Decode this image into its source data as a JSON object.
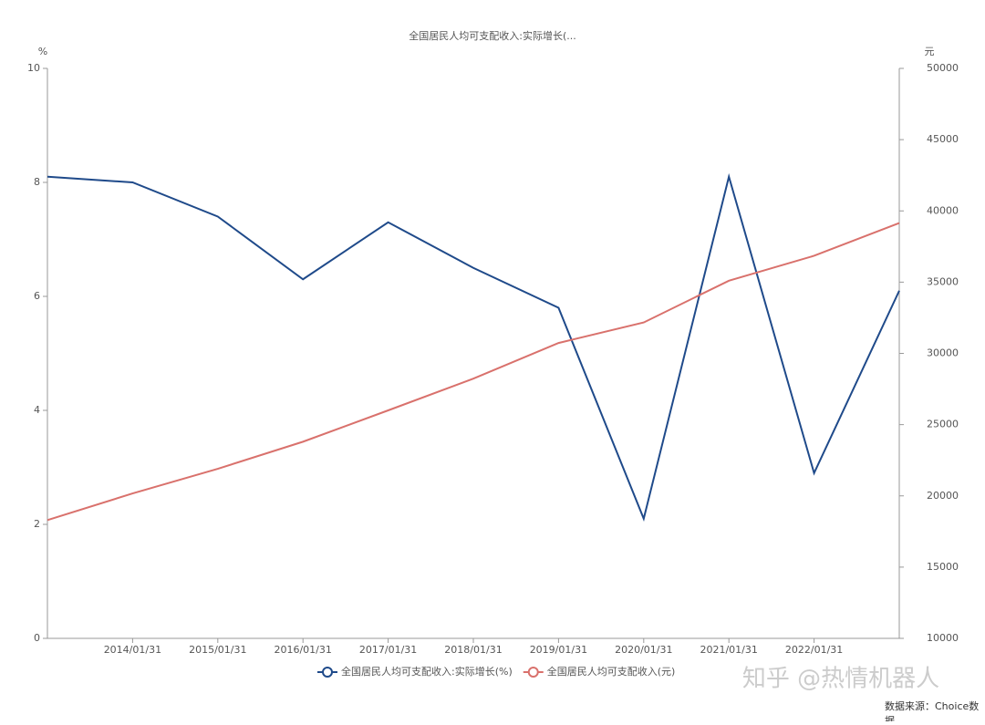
{
  "chart_data": {
    "type": "line",
    "title": "全国居民人均可支配收入:实际增长(...",
    "y_unit": "%",
    "y2_unit": "元",
    "categories": [
      null,
      "2014/01/31",
      "2015/01/31",
      "2016/01/31",
      "2017/01/31",
      "2018/01/31",
      "2019/01/31",
      "2020/01/31",
      "2021/01/31",
      "2022/01/31",
      null
    ],
    "series": [
      {
        "name": "全国居民人均可支配收入:实际增长(%)",
        "color": "#1f4a8a",
        "values": [
          8.1,
          8.0,
          7.4,
          6.3,
          7.3,
          6.5,
          5.8,
          2.1,
          8.1,
          2.9,
          6.1
        ]
      },
      {
        "name": "全国居民人均可支配收入(元)",
        "color": "#d9716c",
        "axis": "y2",
        "values": [
          18300,
          20170,
          21900,
          23800,
          26000,
          28230,
          30730,
          32170,
          35100,
          36850,
          39150
        ]
      }
    ],
    "ylim": [
      0,
      10
    ],
    "yticks": [
      0,
      2,
      4,
      6,
      8,
      10
    ],
    "y2lim": [
      10000,
      50000
    ],
    "y2ticks": [
      10000,
      15000,
      20000,
      25000,
      30000,
      35000,
      40000,
      45000,
      50000
    ],
    "watermark": "知乎 @热情机器人",
    "source": "数据来源：Choice数据"
  }
}
